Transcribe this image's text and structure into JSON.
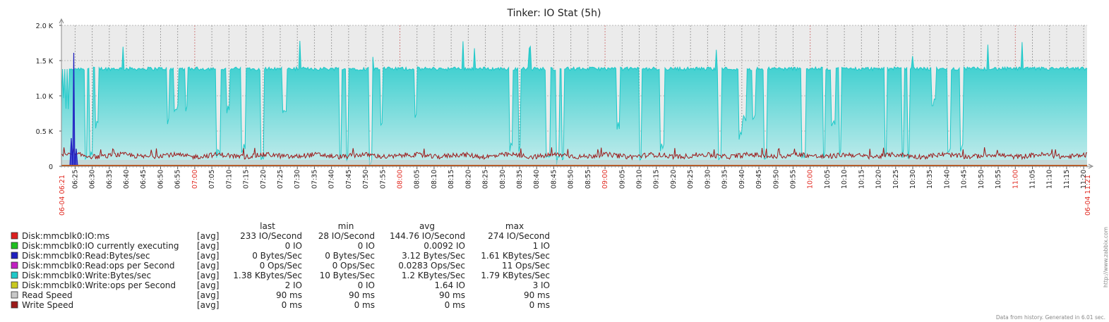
{
  "chart_data": {
    "type": "area",
    "title": "Tinker: IO Stat (5h)",
    "y_ticks": [
      "0",
      "0.5 K",
      "1.0 K",
      "1.5 K",
      "2.0 K"
    ],
    "ylim": [
      0,
      2000
    ],
    "grid": true,
    "x_start_label": "06-04 06:21",
    "x_end_label": "06-04 11:21",
    "x_ticks": [
      {
        "label": "06:25",
        "red": false
      },
      {
        "label": "06:30",
        "red": false
      },
      {
        "label": "06:35",
        "red": false
      },
      {
        "label": "06:40",
        "red": false
      },
      {
        "label": "06:45",
        "red": false
      },
      {
        "label": "06:50",
        "red": false
      },
      {
        "label": "06:55",
        "red": false
      },
      {
        "label": "07:00",
        "red": true
      },
      {
        "label": "07:05",
        "red": false
      },
      {
        "label": "07:10",
        "red": false
      },
      {
        "label": "07:15",
        "red": false
      },
      {
        "label": "07:20",
        "red": false
      },
      {
        "label": "07:25",
        "red": false
      },
      {
        "label": "07:30",
        "red": false
      },
      {
        "label": "07:35",
        "red": false
      },
      {
        "label": "07:40",
        "red": false
      },
      {
        "label": "07:45",
        "red": false
      },
      {
        "label": "07:50",
        "red": false
      },
      {
        "label": "07:55",
        "red": false
      },
      {
        "label": "08:00",
        "red": true
      },
      {
        "label": "08:05",
        "red": false
      },
      {
        "label": "08:10",
        "red": false
      },
      {
        "label": "08:15",
        "red": false
      },
      {
        "label": "08:20",
        "red": false
      },
      {
        "label": "08:25",
        "red": false
      },
      {
        "label": "08:30",
        "red": false
      },
      {
        "label": "08:35",
        "red": false
      },
      {
        "label": "08:40",
        "red": false
      },
      {
        "label": "08:45",
        "red": false
      },
      {
        "label": "08:50",
        "red": false
      },
      {
        "label": "08:55",
        "red": false
      },
      {
        "label": "09:00",
        "red": true
      },
      {
        "label": "09:05",
        "red": false
      },
      {
        "label": "09:10",
        "red": false
      },
      {
        "label": "09:15",
        "red": false
      },
      {
        "label": "09:20",
        "red": false
      },
      {
        "label": "09:25",
        "red": false
      },
      {
        "label": "09:30",
        "red": false
      },
      {
        "label": "09:35",
        "red": false
      },
      {
        "label": "09:40",
        "red": false
      },
      {
        "label": "09:45",
        "red": false
      },
      {
        "label": "09:50",
        "red": false
      },
      {
        "label": "09:55",
        "red": false
      },
      {
        "label": "10:00",
        "red": true
      },
      {
        "label": "10:05",
        "red": false
      },
      {
        "label": "10:10",
        "red": false
      },
      {
        "label": "10:15",
        "red": false
      },
      {
        "label": "10:20",
        "red": false
      },
      {
        "label": "10:25",
        "red": false
      },
      {
        "label": "10:30",
        "red": false
      },
      {
        "label": "10:35",
        "red": false
      },
      {
        "label": "10:40",
        "red": false
      },
      {
        "label": "10:45",
        "red": false
      },
      {
        "label": "10:50",
        "red": false
      },
      {
        "label": "10:55",
        "red": false
      },
      {
        "label": "11:00",
        "red": true
      },
      {
        "label": "11:05",
        "red": false
      },
      {
        "label": "11:10",
        "red": false
      },
      {
        "label": "11:15",
        "red": false
      },
      {
        "label": "11:20",
        "red": false
      }
    ],
    "legend_headers": [
      "last",
      "min",
      "avg",
      "max"
    ],
    "series": [
      {
        "name": "Disk:mmcblk0:IO:ms",
        "color": "#dd1f1f",
        "func": "[avg]",
        "last": "233 IO/Second",
        "min": "28 IO/Second",
        "avg": "144.76 IO/Second",
        "max": "274 IO/Second"
      },
      {
        "name": "Disk:mmcblk0:IO currently executing",
        "color": "#1fbf1f",
        "func": "[avg]",
        "last": "0 IO",
        "min": "0 IO",
        "avg": "0.0092 IO",
        "max": "1 IO"
      },
      {
        "name": "Disk:mmcblk0:Read:Bytes/sec",
        "color": "#1f1fbf",
        "func": "[avg]",
        "last": "0 Bytes/Sec",
        "min": "0 Bytes/Sec",
        "avg": "3.12 Bytes/Sec",
        "max": "1.61 KBytes/Sec"
      },
      {
        "name": "Disk:mmcblk0:Read:ops per Second",
        "color": "#c21fc2",
        "func": "[avg]",
        "last": "0 Ops/Sec",
        "min": "0 Ops/Sec",
        "avg": "0.0283 Ops/Sec",
        "max": "11 Ops/Sec"
      },
      {
        "name": "Disk:mmcblk0:Write:Bytes/sec",
        "color": "#1fc9c9",
        "func": "[avg]",
        "last": "1.38 KBytes/Sec",
        "min": "10 Bytes/Sec",
        "avg": "1.2 KBytes/Sec",
        "max": "1.79 KBytes/Sec"
      },
      {
        "name": "Disk:mmcblk0:Write:ops per Second",
        "color": "#c9c91f",
        "func": "[avg]",
        "last": "2 IO",
        "min": "0 IO",
        "avg": "1.64 IO",
        "max": "3 IO"
      },
      {
        "name": "Read Speed",
        "color": "#c8c8c8",
        "func": "[avg]",
        "last": "90 ms",
        "min": "90 ms",
        "avg": "90 ms",
        "max": "90 ms"
      },
      {
        "name": "Write Speed",
        "color": "#9c1a1a",
        "func": "[avg]",
        "last": "0 ms",
        "min": "0 ms",
        "avg": "0 ms",
        "max": "0 ms"
      }
    ],
    "typical_values": {
      "write_bytes_plateau": 1390,
      "write_bytes_max": 1790,
      "io_ms_typical": 150,
      "read_speed": 90,
      "read_bytes_peak": 1610
    }
  },
  "footer": {
    "generated": "Data from history. Generated in 6.01 sec.",
    "watermark": "http://www.zabbix.com"
  }
}
